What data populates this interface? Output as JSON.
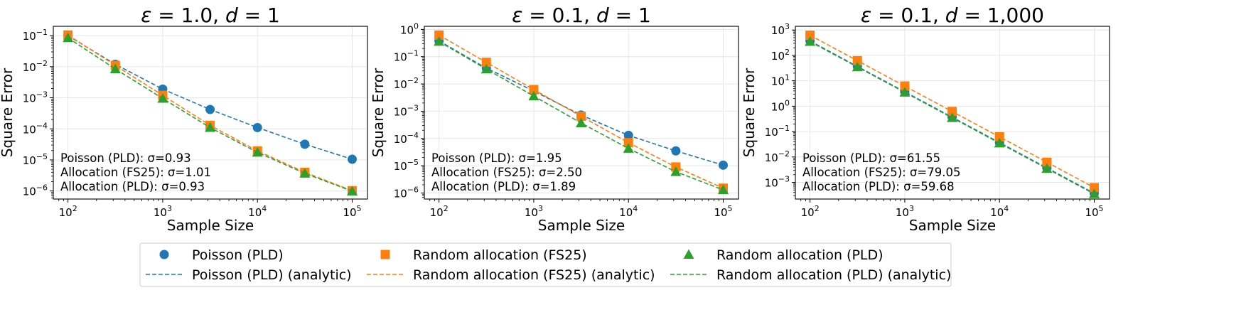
{
  "chart_data": [
    {
      "type": "line",
      "title_parts": [
        [
          "ε",
          "italic"
        ],
        [
          " = 1.0, ",
          "normal"
        ],
        [
          "d",
          "italic"
        ],
        [
          " = 1",
          "normal"
        ]
      ],
      "xlabel": "Sample Size",
      "ylabel": "Square Error",
      "xscale": "log",
      "yscale": "log",
      "xlim": [
        70,
        145000
      ],
      "ylim": [
        5.5e-07,
        0.2
      ],
      "x": [
        100,
        316,
        1000,
        3162,
        10000,
        31623,
        100000
      ],
      "xticks": [
        {
          "value": 100,
          "base": "10",
          "exp": "2"
        },
        {
          "value": 1000,
          "base": "10",
          "exp": "3"
        },
        {
          "value": 10000,
          "base": "10",
          "exp": "4"
        },
        {
          "value": 100000,
          "base": "10",
          "exp": "5"
        }
      ],
      "yticks": [
        {
          "value": 1e-06,
          "base": "10",
          "exp": "−6"
        },
        {
          "value": 1e-05,
          "base": "10",
          "exp": "−5"
        },
        {
          "value": 0.0001,
          "base": "10",
          "exp": "−4"
        },
        {
          "value": 0.001,
          "base": "10",
          "exp": "−3"
        },
        {
          "value": 0.01,
          "base": "10",
          "exp": "−2"
        },
        {
          "value": 0.1,
          "base": "10",
          "exp": "−1"
        }
      ],
      "series": [
        {
          "name": "Poisson (PLD)",
          "values": [
            0.1,
            0.012,
            0.0019,
            0.00042,
            0.00011,
            3.2e-05,
            1.05e-05
          ],
          "analytic": [
            0.1,
            0.012,
            0.0019,
            0.00042,
            0.00011,
            3.2e-05,
            1.05e-05
          ]
        },
        {
          "name": "Random allocation (FS25)",
          "values": [
            0.105,
            0.011,
            0.0012,
            0.00013,
            1.95e-05,
            4e-06,
            1.02e-06
          ],
          "analytic": [
            0.105,
            0.011,
            0.0012,
            0.00013,
            1.95e-05,
            4e-06,
            1.02e-06
          ]
        },
        {
          "name": "Random allocation (PLD)",
          "values": [
            0.085,
            0.0085,
            0.00095,
            0.00011,
            1.75e-05,
            3.7e-06,
            9.8e-07
          ],
          "analytic": [
            0.085,
            0.0085,
            0.00095,
            0.00011,
            1.75e-05,
            3.7e-06,
            9.8e-07
          ]
        }
      ],
      "annotations": [
        "Poisson (PLD): σ=0.93",
        "Allocation (FS25): σ=1.01",
        "Allocation (PLD): σ=0.93"
      ]
    },
    {
      "type": "line",
      "title_parts": [
        [
          "ε",
          "italic"
        ],
        [
          " = 0.1, ",
          "normal"
        ],
        [
          "d",
          "italic"
        ],
        [
          " = 1",
          "normal"
        ]
      ],
      "xlabel": "Sample Size",
      "ylabel": "Square Error",
      "xscale": "log",
      "yscale": "log",
      "xlim": [
        70,
        145000
      ],
      "ylim": [
        6e-07,
        1.3
      ],
      "x": [
        100,
        316,
        1000,
        3162,
        10000,
        31623,
        100000
      ],
      "xticks": [
        {
          "value": 100,
          "base": "10",
          "exp": "2"
        },
        {
          "value": 1000,
          "base": "10",
          "exp": "3"
        },
        {
          "value": 10000,
          "base": "10",
          "exp": "4"
        },
        {
          "value": 100000,
          "base": "10",
          "exp": "5"
        }
      ],
      "yticks": [
        {
          "value": 1e-06,
          "base": "10",
          "exp": "−6"
        },
        {
          "value": 1e-05,
          "base": "10",
          "exp": "−5"
        },
        {
          "value": 0.0001,
          "base": "10",
          "exp": "−4"
        },
        {
          "value": 0.001,
          "base": "10",
          "exp": "−3"
        },
        {
          "value": 0.01,
          "base": "10",
          "exp": "−2"
        },
        {
          "value": 0.1,
          "base": "10",
          "exp": "−1"
        },
        {
          "value": 1,
          "base": "10",
          "exp": "0"
        }
      ],
      "series": [
        {
          "name": "Poisson (PLD)",
          "values": [
            0.38,
            0.038,
            0.0055,
            0.00072,
            0.00013,
            3.5e-05,
            1.05e-05
          ],
          "analytic": [
            0.38,
            0.038,
            0.0055,
            0.00072,
            0.00013,
            3.5e-05,
            1.05e-05
          ]
        },
        {
          "name": "Random allocation (FS25)",
          "values": [
            0.62,
            0.062,
            0.0062,
            0.00065,
            7e-05,
            9e-06,
            1.5e-06
          ],
          "analytic": [
            0.62,
            0.062,
            0.0062,
            0.00065,
            7e-05,
            9e-06,
            1.5e-06
          ]
        },
        {
          "name": "Random allocation (PLD)",
          "values": [
            0.36,
            0.035,
            0.0036,
            0.00037,
            4.3e-05,
            6e-06,
            1.3e-06
          ],
          "analytic": [
            0.36,
            0.035,
            0.0036,
            0.00037,
            4.3e-05,
            6e-06,
            1.3e-06
          ]
        }
      ],
      "annotations": [
        "Poisson (PLD): σ=1.95",
        "Allocation (FS25): σ=2.50",
        "Allocation (PLD): σ=1.89"
      ]
    },
    {
      "type": "line",
      "title_parts": [
        [
          "ε",
          "italic"
        ],
        [
          " = 0.1, ",
          "normal"
        ],
        [
          "d",
          "italic"
        ],
        [
          " = 1,000",
          "normal"
        ]
      ],
      "xlabel": "Sample Size",
      "ylabel": "Square Error",
      "xscale": "log",
      "yscale": "log",
      "xlim": [
        70,
        145000
      ],
      "ylim": [
        0.00022,
        1400
      ],
      "x": [
        100,
        316,
        1000,
        3162,
        10000,
        31623,
        100000
      ],
      "xticks": [
        {
          "value": 100,
          "base": "10",
          "exp": "2"
        },
        {
          "value": 1000,
          "base": "10",
          "exp": "3"
        },
        {
          "value": 10000,
          "base": "10",
          "exp": "4"
        },
        {
          "value": 100000,
          "base": "10",
          "exp": "5"
        }
      ],
      "yticks": [
        {
          "value": 0.001,
          "base": "10",
          "exp": "−3"
        },
        {
          "value": 0.01,
          "base": "10",
          "exp": "−2"
        },
        {
          "value": 0.1,
          "base": "10",
          "exp": "−1"
        },
        {
          "value": 1,
          "base": "10",
          "exp": "0"
        },
        {
          "value": 10,
          "base": "10",
          "exp": "1"
        },
        {
          "value": 100,
          "base": "10",
          "exp": "2"
        },
        {
          "value": 1000,
          "base": "10",
          "exp": "3"
        }
      ],
      "series": [
        {
          "name": "Poisson (PLD)",
          "values": [
            370,
            37,
            3.7,
            0.37,
            0.037,
            0.0037,
            0.00037
          ],
          "analytic": [
            370,
            37,
            3.7,
            0.37,
            0.037,
            0.0037,
            0.00037
          ]
        },
        {
          "name": "Random allocation (FS25)",
          "values": [
            620,
            62,
            6.2,
            0.62,
            0.062,
            0.0062,
            0.00062
          ],
          "analytic": [
            620,
            62,
            6.2,
            0.62,
            0.062,
            0.0062,
            0.00062
          ]
        },
        {
          "name": "Random allocation (PLD)",
          "values": [
            350,
            35,
            3.5,
            0.35,
            0.035,
            0.0035,
            0.00035
          ],
          "analytic": [
            350,
            35,
            3.5,
            0.35,
            0.035,
            0.0035,
            0.00035
          ]
        }
      ],
      "annotations": [
        "Poisson (PLD): σ=61.55",
        "Allocation (FS25): σ=79.05",
        "Allocation (PLD): σ=59.68"
      ]
    }
  ],
  "legend": {
    "location": "bottom-center",
    "entries": [
      {
        "label": "Poisson (PLD)",
        "series": 0,
        "style": "marker"
      },
      {
        "label": "Random allocation (FS25)",
        "series": 1,
        "style": "marker"
      },
      {
        "label": "Random allocation (PLD)",
        "series": 2,
        "style": "marker"
      },
      {
        "label": "Poisson (PLD) (analytic)",
        "series": 0,
        "style": "dashed"
      },
      {
        "label": "Random allocation (FS25) (analytic)",
        "series": 1,
        "style": "dashed"
      },
      {
        "label": "Random allocation (PLD) (analytic)",
        "series": 2,
        "style": "dashed"
      }
    ]
  },
  "colors": {
    "series": [
      "#1f77b4",
      "#ff7f0e",
      "#2ca02c"
    ],
    "markers": [
      "circle",
      "square",
      "triangle"
    ],
    "grid": "#e6e6e6",
    "axis": "#000000"
  }
}
